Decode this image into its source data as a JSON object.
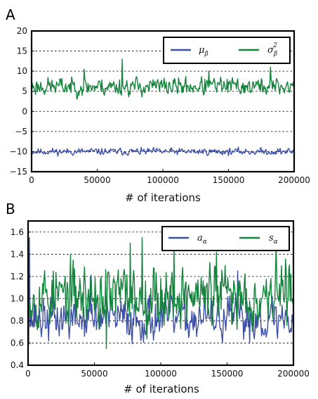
{
  "chart_data": [
    {
      "type": "line",
      "panel_letter": "A",
      "xlabel": "# of iterations",
      "ylabel": "",
      "xlim": [
        0,
        200000
      ],
      "ylim": [
        -15,
        20
      ],
      "xticks": [
        0,
        50000,
        100000,
        150000,
        200000
      ],
      "yticks": [
        -15,
        -10,
        -5,
        0,
        5,
        10,
        15,
        20
      ],
      "xtick_labels": [
        "0",
        "50000",
        "100000",
        "150000",
        "200000"
      ],
      "ytick_labels": [
        "−15",
        "−10",
        "−5",
        "0",
        "5",
        "10",
        "15",
        "20"
      ],
      "grid": "horizontal-dashed",
      "legend_position": "top-right",
      "series": [
        {
          "name": "μ",
          "subscript": "β",
          "superscript": "",
          "color": "#3b4fa6",
          "mean": -10,
          "spread": 0.6,
          "samples": 400,
          "seed": 11,
          "spikes": []
        },
        {
          "name": "σ",
          "subscript": "β",
          "superscript": "2",
          "color": "#13843b",
          "mean": 6.2,
          "spread": 1.6,
          "samples": 400,
          "seed": 23,
          "spikes": [
            [
              40000,
              10.5
            ],
            [
              69000,
              13
            ],
            [
              135000,
              10
            ],
            [
              182000,
              11
            ]
          ]
        }
      ]
    },
    {
      "type": "line",
      "panel_letter": "B",
      "xlabel": "# of iterations",
      "ylabel": "",
      "xlim": [
        0,
        200000
      ],
      "ylim": [
        0.4,
        1.7
      ],
      "xticks": [
        0,
        50000,
        100000,
        150000,
        200000
      ],
      "yticks": [
        0.4,
        0.6,
        0.8,
        1.0,
        1.2,
        1.4,
        1.6
      ],
      "xtick_labels": [
        "0",
        "50000",
        "100000",
        "150000",
        "200000"
      ],
      "ytick_labels": [
        "0.4",
        "0.6",
        "0.8",
        "1.0",
        "1.2",
        "1.4",
        "1.6"
      ],
      "grid": "horizontal-dashed",
      "legend_position": "top-right",
      "series": [
        {
          "name": "a",
          "subscript": "α",
          "superscript": "",
          "color": "#3b4fa6",
          "mean": 0.82,
          "spread": 0.14,
          "samples": 400,
          "seed": 37,
          "spikes": [
            [
              1000,
              1.55
            ],
            [
              47000,
              1.2
            ],
            [
              158000,
              1.25
            ]
          ]
        },
        {
          "name": "s",
          "subscript": "α",
          "superscript": "",
          "color": "#13843b",
          "mean": 1.03,
          "spread": 0.2,
          "samples": 400,
          "seed": 53,
          "spikes": [
            [
              59000,
              0.55
            ],
            [
              77000,
              1.5
            ],
            [
              86000,
              1.55
            ],
            [
              110000,
              1.48
            ],
            [
              142000,
              1.42
            ],
            [
              187000,
              1.5
            ]
          ]
        }
      ]
    }
  ]
}
